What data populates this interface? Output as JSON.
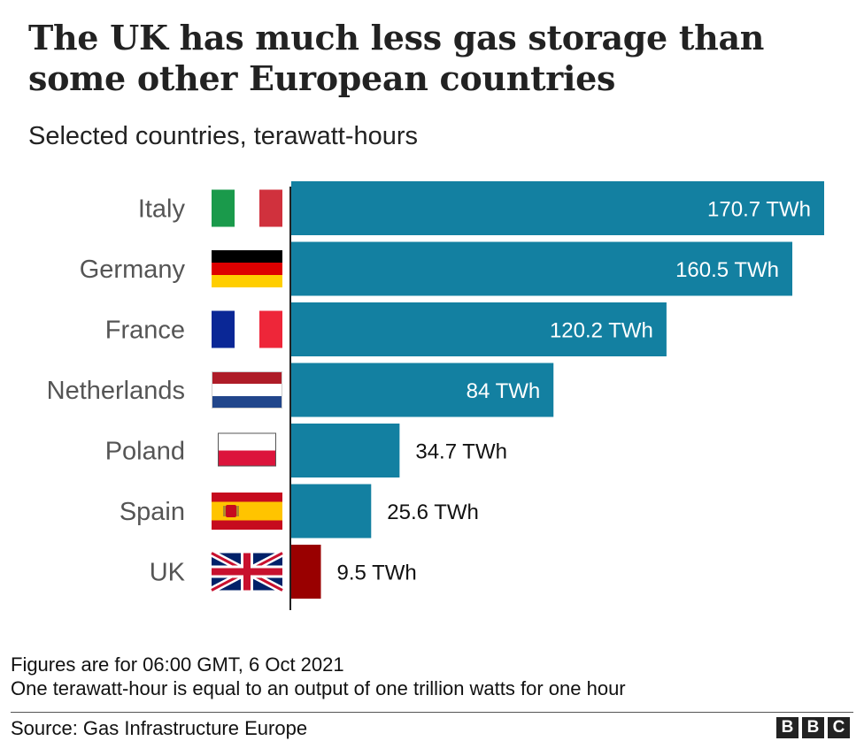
{
  "title": "The UK has much less gas storage than some other European countries",
  "subtitle": "Selected countries, terawatt-hours",
  "chart_data": {
    "type": "bar",
    "orientation": "horizontal",
    "categories": [
      "Italy",
      "Germany",
      "France",
      "Netherlands",
      "Poland",
      "Spain",
      "UK"
    ],
    "values": [
      170.7,
      160.5,
      120.2,
      84,
      34.7,
      25.6,
      9.5
    ],
    "value_labels": [
      "170.7 TWh",
      "160.5 TWh",
      "120.2 TWh",
      "84 TWh",
      "34.7 TWh",
      "25.6 TWh",
      "9.5 TWh"
    ],
    "unit": "TWh",
    "xlim": [
      0,
      170.7
    ],
    "bar_colors": [
      "#1380A1",
      "#1380A1",
      "#1380A1",
      "#1380A1",
      "#1380A1",
      "#1380A1",
      "#990000"
    ],
    "flag_icons": [
      "italy-flag-icon",
      "germany-flag-icon",
      "france-flag-icon",
      "netherlands-flag-icon",
      "poland-flag-icon",
      "spain-flag-icon",
      "uk-flag-icon"
    ],
    "grid": false,
    "legend": "none"
  },
  "footnotes": [
    "Figures are for 06:00 GMT, 6 Oct 2021",
    "One terawatt-hour is equal to an output of one trillion watts for one hour"
  ],
  "source": "Source: Gas Infrastructure Europe",
  "logo": {
    "letters": [
      "B",
      "B",
      "C"
    ]
  }
}
